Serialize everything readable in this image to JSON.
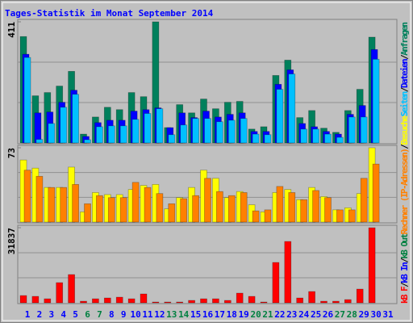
{
  "title": "Tages-Statistik im Monat September 2014",
  "chart_data": [
    {
      "type": "bar",
      "ylim": [
        0,
        411
      ],
      "yticks": [
        411
      ],
      "series": [
        {
          "name": "Anfragen",
          "color": "#00805c",
          "values": [
            361,
            160,
            171,
            193,
            243,
            30,
            88,
            121,
            113,
            171,
            157,
            411,
            52,
            130,
            102,
            149,
            116,
            138,
            141,
            47,
            55,
            229,
            281,
            86,
            110,
            50,
            36,
            110,
            182,
            359,
            null
          ]
        },
        {
          "name": "Dateien",
          "color": "#0000ff",
          "values": [
            301,
            102,
            105,
            138,
            179,
            22,
            69,
            77,
            77,
            108,
            113,
            119,
            52,
            102,
            86,
            108,
            88,
            97,
            102,
            39,
            39,
            199,
            248,
            66,
            55,
            39,
            30,
            97,
            127,
            317,
            null
          ]
        },
        {
          "name": "Seiten",
          "color": "#00c0ff",
          "values": [
            290,
            12,
            66,
            121,
            165,
            11,
            55,
            58,
            58,
            80,
            100,
            116,
            28,
            61,
            83,
            83,
            72,
            77,
            83,
            30,
            28,
            182,
            234,
            47,
            47,
            30,
            19,
            88,
            88,
            284,
            null
          ]
        }
      ]
    },
    {
      "type": "bar",
      "ylim": [
        0,
        73
      ],
      "yticks": [
        73
      ],
      "series": [
        {
          "name": "Besuche",
          "color": "#ffff00",
          "values": [
            61,
            53,
            34,
            34,
            54,
            10,
            29,
            27,
            27,
            32,
            36,
            37,
            13,
            24,
            34,
            51,
            43,
            24,
            30,
            17,
            10,
            29,
            32,
            22,
            34,
            25,
            12,
            14,
            28,
            73,
            null
          ]
        },
        {
          "name": "Rechner (IP-Adressen)",
          "color": "#ff8000",
          "values": [
            51,
            45,
            34,
            34,
            37,
            18,
            26,
            24,
            24,
            39,
            34,
            28,
            18,
            23,
            26,
            43,
            30,
            26,
            29,
            11,
            12,
            35,
            29,
            22,
            31,
            24,
            12,
            12,
            43,
            57,
            null
          ]
        }
      ]
    },
    {
      "type": "bar",
      "ylim": [
        0,
        31837
      ],
      "yticks": [
        31837
      ],
      "categories": [
        "1",
        "2",
        "3",
        "4",
        "5",
        "6",
        "7",
        "8",
        "9",
        "10",
        "11",
        "12",
        "13",
        "14",
        "15",
        "16",
        "17",
        "18",
        "19",
        "20",
        "21",
        "22",
        "23",
        "24",
        "25",
        "26",
        "27",
        "28",
        "29",
        "30",
        "31"
      ],
      "highlighted": [
        "6",
        "7",
        "13",
        "14",
        "20",
        "21",
        "27",
        "28"
      ],
      "highlight_color": "#008040",
      "label_color": "#0000ff",
      "series": [
        {
          "name": "kB F",
          "color": "#ff0000",
          "values": [
            3081,
            2739,
            1711,
            8558,
            11981,
            685,
            1711,
            2054,
            2396,
            1711,
            3766,
            342,
            342,
            342,
            1027,
            1711,
            1711,
            1027,
            4108,
            2739,
            342,
            17117,
            26018,
            2054,
            4793,
            685,
            685,
            1369,
            5820,
            31837,
            null
          ]
        }
      ],
      "legend_more": [
        {
          "name": "kB In",
          "color": "#0000ff"
        },
        {
          "name": "kB Out",
          "color": "#008040"
        }
      ],
      "separator": "/"
    }
  ]
}
